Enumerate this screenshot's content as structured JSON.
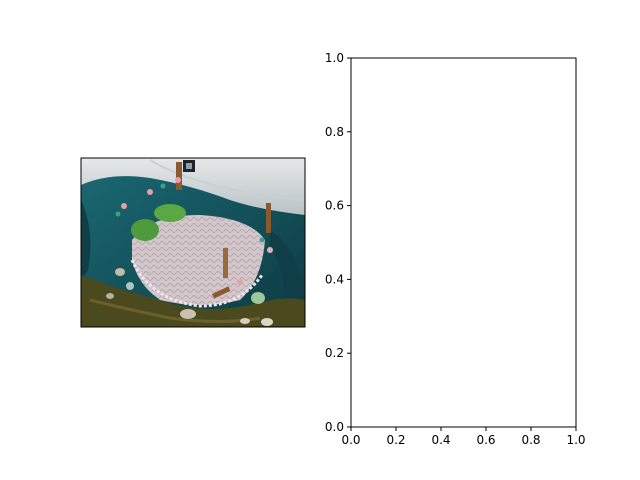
{
  "chart_data": [
    {
      "type": "image",
      "title": "",
      "xlabel": "",
      "ylabel": "",
      "axes_visible": false
    },
    {
      "type": "line",
      "title": "",
      "xlabel": "",
      "ylabel": "",
      "xlim": [
        0.0,
        1.0
      ],
      "ylim": [
        0.0,
        1.0
      ],
      "xticks": [
        "0.0",
        "0.2",
        "0.4",
        "0.6",
        "0.8",
        "1.0"
      ],
      "yticks": [
        "0.0",
        "0.2",
        "0.4",
        "0.6",
        "0.8",
        "1.0"
      ],
      "series": [],
      "grid": false
    }
  ],
  "colors": {
    "axis": "#000000",
    "background": "#ffffff",
    "teal_cloth": "#1f6e78",
    "dark_teal": "#0f3e46",
    "white_drape": "#dcdfe2",
    "lace": "#cfc2c8",
    "moss": "#4a4a1e",
    "leaf_green": "#4f9a3c"
  }
}
